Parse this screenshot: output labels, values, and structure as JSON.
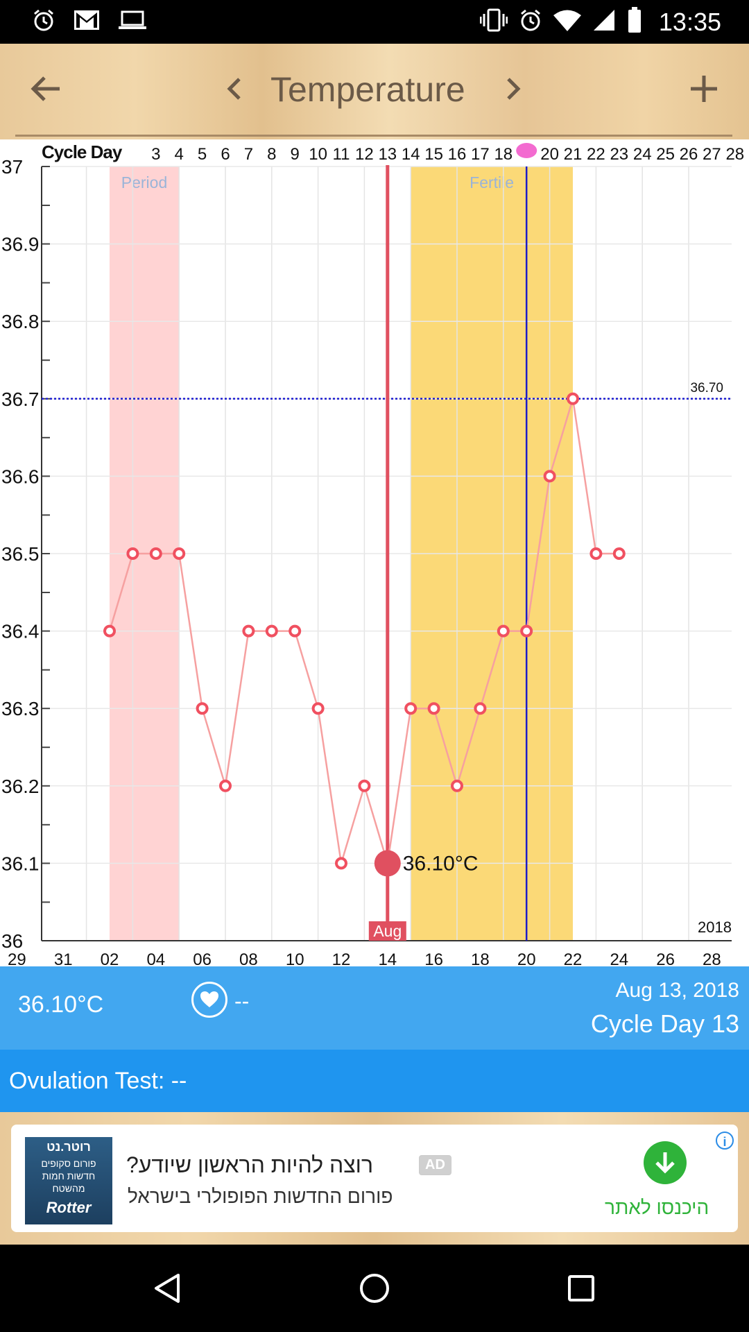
{
  "status_bar": {
    "time": "13:35",
    "left_icons": [
      "alarm-icon",
      "gmail-icon",
      "laptop-icon"
    ],
    "right_icons": [
      "vibrate-icon",
      "alarm-icon",
      "wifi-icon",
      "signal-icon",
      "battery-icon"
    ]
  },
  "toolbar": {
    "title": "Temperature",
    "icons": [
      "back-arrow-icon",
      "chevron-left-icon",
      "chevron-right-icon",
      "plus-icon"
    ]
  },
  "chart_data": {
    "type": "line",
    "title": "",
    "top_axis_label": "Cycle Day",
    "cycle_day_labels": [
      "3",
      "4",
      "5",
      "6",
      "7",
      "8",
      "9",
      "10",
      "11",
      "12",
      "13",
      "14",
      "15",
      "16",
      "17",
      "18",
      "19",
      "20",
      "21",
      "22",
      "23",
      "24",
      "25",
      "26",
      "27",
      "28"
    ],
    "bottom_tick_labels": [
      "29",
      "31",
      "02",
      "04",
      "06",
      "08",
      "10",
      "12",
      "14",
      "16",
      "18",
      "20",
      "22",
      "24",
      "26",
      "28"
    ],
    "y_tick_labels": [
      "37",
      "36.9",
      "36.8",
      "36.7",
      "36.6",
      "36.5",
      "36.4",
      "36.3",
      "36.2",
      "36.1",
      "36"
    ],
    "ylim": [
      36.0,
      37.0
    ],
    "year_label": "2018",
    "month_label": "Aug",
    "cover_line_value": 36.7,
    "cover_line_label": "36.70",
    "selected_day": 13,
    "selected_value_label": "36.10°C",
    "ovulation_day": 19,
    "period_band": {
      "label": "Period",
      "from_day": 1,
      "to_day": 4
    },
    "fertile_band": {
      "label": "Fertile",
      "from_day": 14,
      "to_day": 21
    },
    "series": [
      {
        "days": [
          1,
          2,
          3,
          4,
          5,
          6,
          7,
          8,
          9,
          10,
          11,
          12,
          13,
          14,
          15,
          16,
          17,
          18,
          19,
          20,
          21,
          22,
          23
        ],
        "values": [
          36.4,
          36.5,
          36.5,
          36.5,
          36.3,
          36.2,
          36.4,
          36.4,
          36.4,
          36.3,
          36.1,
          36.2,
          36.1,
          36.3,
          36.3,
          36.2,
          36.3,
          36.4,
          36.4,
          36.6,
          36.7,
          36.5,
          36.5
        ]
      }
    ],
    "colors": {
      "line": "#f6a0a0",
      "marker": "#f05060",
      "period_band": "#ffd3d3",
      "fertile_band": "#fbd977",
      "selected_line": "#e05060",
      "ovulation_line": "#1c1cc8",
      "cover_line": "#1c1cd0"
    }
  },
  "info": {
    "temperature": "36.10°C",
    "intercourse_value": "--",
    "date": "Aug 13, 2018",
    "cycle_day": "Cycle Day 13"
  },
  "ovulation": {
    "label": "Ovulation Test: --"
  },
  "ad": {
    "logo_line1": "רוטר.נט",
    "logo_line2": "פורום סקופים\nחדשות חמות\nמהשטח",
    "logo_line3": "Rotter",
    "headline": "רוצה להיות הראשון שיודע?",
    "badge": "AD",
    "body": "פורום החדשות הפופולרי בישראל",
    "cta": "היכנסו לאתר"
  },
  "nav_bar": {
    "icons": [
      "back-triangle-icon",
      "home-circle-icon",
      "recents-square-icon"
    ]
  }
}
